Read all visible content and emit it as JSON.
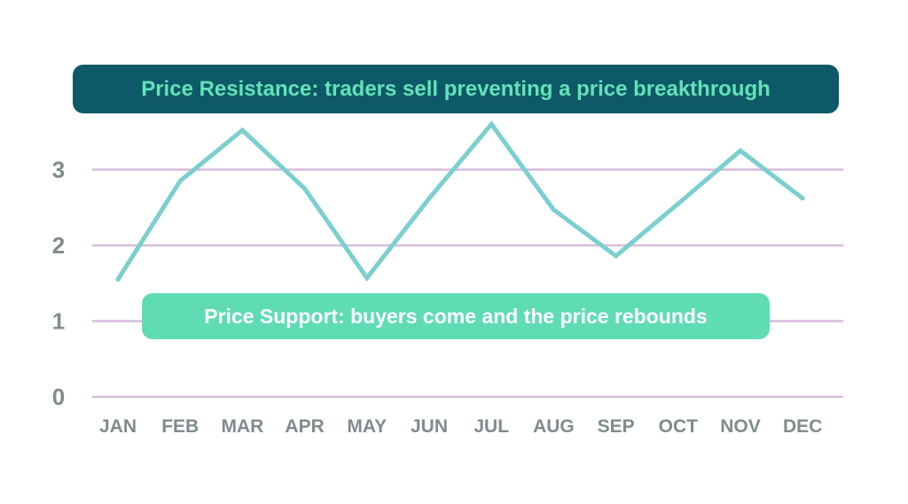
{
  "chart_data": {
    "type": "line",
    "categories": [
      "JAN",
      "FEB",
      "MAR",
      "APR",
      "MAY",
      "JUN",
      "JUL",
      "AUG",
      "SEP",
      "OCT",
      "NOV",
      "DEC"
    ],
    "series": [
      {
        "values": [
          1.55,
          2.85,
          3.52,
          2.75,
          1.57,
          2.62,
          3.6,
          2.47,
          1.86,
          2.55,
          3.25,
          2.62
        ]
      }
    ],
    "ylim": [
      0,
      3.5
    ],
    "yticks": [
      0,
      1,
      2,
      3
    ],
    "grid": true,
    "annotations": [
      {
        "text": "Price Resistance: traders sell preventing a price breakthrough"
      },
      {
        "text": "Price Support: buyers come and the price rebounds"
      }
    ]
  },
  "colors": {
    "line": "#7ccfcf",
    "grid": "#d6bcdc",
    "axis_text": "#7f8c8d",
    "resistance_bg": "#0e5967",
    "resistance_text": "#62e3b8",
    "support_bg": "#5fdcb4",
    "support_text": "#ffffff"
  }
}
